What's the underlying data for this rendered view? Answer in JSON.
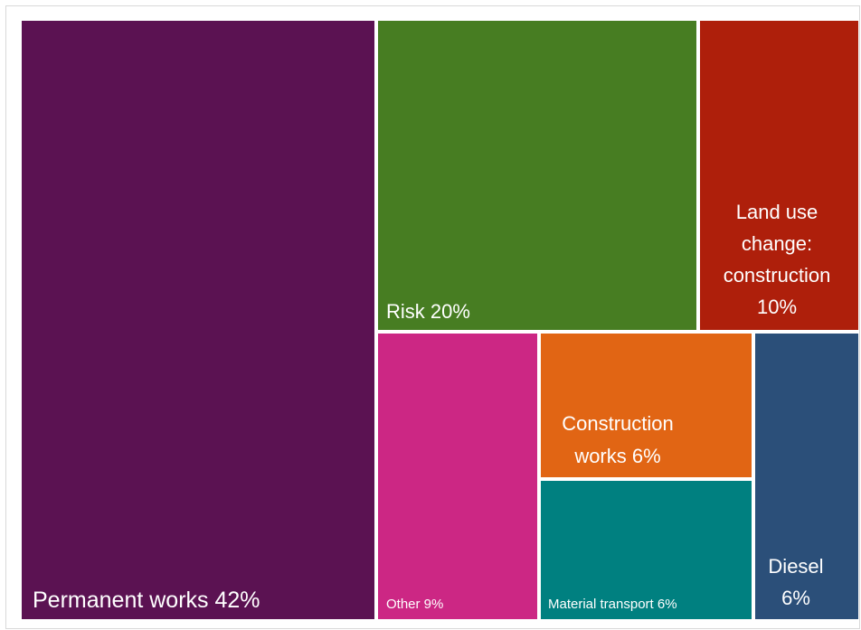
{
  "chart_data": {
    "type": "treemap",
    "items": [
      {
        "key": "permanent",
        "lines": [
          "Permanent works 42%"
        ],
        "value": 42,
        "color": "#5b1252"
      },
      {
        "key": "risk",
        "lines": [
          "Risk 20%"
        ],
        "value": 20,
        "color": "#477d22"
      },
      {
        "key": "landuse",
        "lines": [
          "Land use",
          "change:",
          "construction",
          "10%"
        ],
        "value": 10,
        "color": "#ae1f0b"
      },
      {
        "key": "other",
        "lines": [
          "Other 9%"
        ],
        "value": 9,
        "color": "#cc2784"
      },
      {
        "key": "construction",
        "lines": [
          "Construction",
          "works 6%"
        ],
        "value": 6,
        "color": "#e16514"
      },
      {
        "key": "transport",
        "lines": [
          "Material transport 6%"
        ],
        "value": 6,
        "color": "#008080"
      },
      {
        "key": "diesel",
        "lines": [
          "Diesel",
          "6%"
        ],
        "value": 6,
        "color": "#2b4f79"
      }
    ]
  }
}
